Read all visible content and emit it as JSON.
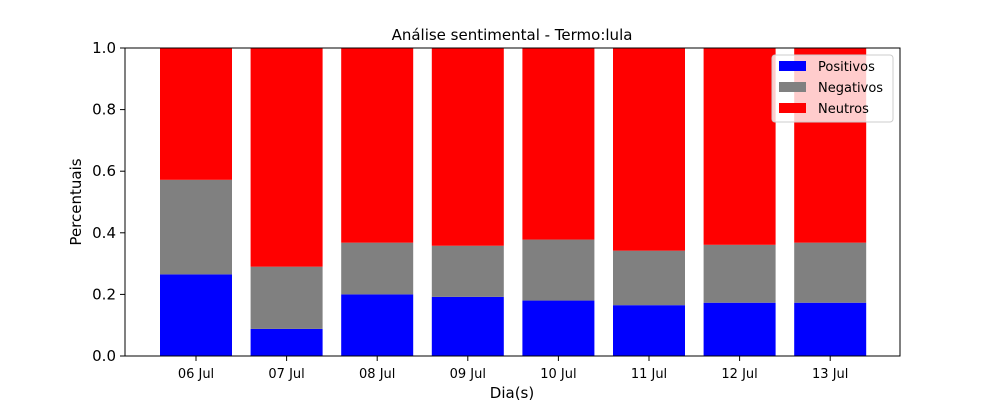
{
  "chart_data": {
    "type": "bar",
    "stacked": true,
    "title": "Análise sentimental - Termo:lula",
    "xlabel": "Dia(s)",
    "ylabel": "Percentuais",
    "ylim": [
      0,
      1
    ],
    "yticks": [
      0.0,
      0.2,
      0.4,
      0.6,
      0.8,
      1.0
    ],
    "ytick_labels": [
      "0.0",
      "0.2",
      "0.4",
      "0.6",
      "0.8",
      "1.0"
    ],
    "categories": [
      "06 Jul",
      "07 Jul",
      "08 Jul",
      "09 Jul",
      "10 Jul",
      "11 Jul",
      "12 Jul",
      "13 Jul"
    ],
    "series": [
      {
        "name": "Positivos",
        "color": "#0000ff",
        "values": [
          0.265,
          0.088,
          0.2,
          0.192,
          0.18,
          0.165,
          0.173,
          0.173
        ]
      },
      {
        "name": "Negativos",
        "color": "#808080",
        "values": [
          0.307,
          0.202,
          0.168,
          0.166,
          0.198,
          0.177,
          0.188,
          0.195
        ]
      },
      {
        "name": "Neutros",
        "color": "#ff0000",
        "values": [
          0.428,
          0.71,
          0.632,
          0.642,
          0.622,
          0.658,
          0.639,
          0.632
        ]
      }
    ],
    "legend": {
      "position": "top-right"
    },
    "grid": false
  }
}
